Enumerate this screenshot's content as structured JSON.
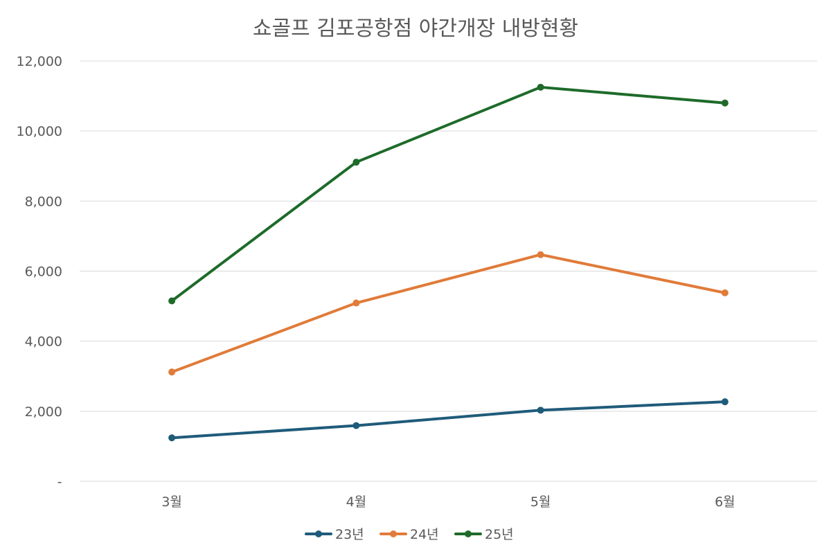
{
  "chart_data": {
    "type": "line",
    "title": "쇼골프 김포공항점 야간개장 내방현황",
    "categories": [
      "3월",
      "4월",
      "5월",
      "6월"
    ],
    "ylim": [
      0,
      12000
    ],
    "ytick_values": [
      0,
      2000,
      4000,
      6000,
      8000,
      10000,
      12000
    ],
    "ytick_labels": [
      "-",
      "2,000",
      "4,000",
      "6,000",
      "8,000",
      "10,000",
      "12,000"
    ],
    "grid": true,
    "legend_position": "bottom",
    "series": [
      {
        "name": "23년",
        "color": "#1f5b7a",
        "values": [
          1240,
          1590,
          2030,
          2270
        ]
      },
      {
        "name": "24년",
        "color": "#e07b39",
        "values": [
          3120,
          5090,
          6470,
          5380
        ]
      },
      {
        "name": "25년",
        "color": "#1e6b2a",
        "values": [
          5150,
          9110,
          11250,
          10800
        ]
      }
    ]
  }
}
